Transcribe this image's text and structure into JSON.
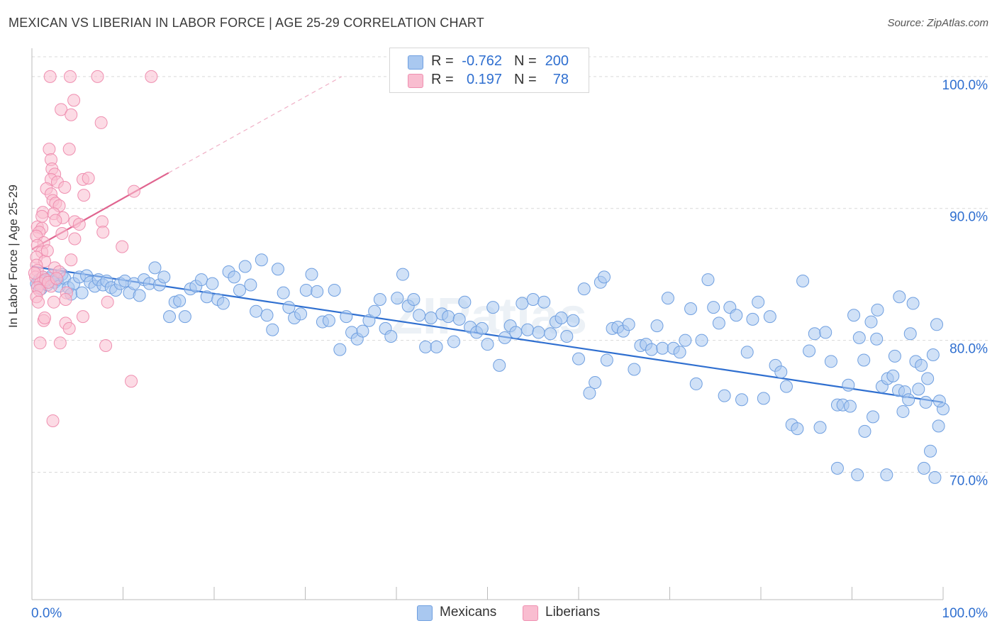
{
  "title": "MEXICAN VS LIBERIAN IN LABOR FORCE | AGE 25-29 CORRELATION CHART",
  "source": "Source: ZipAtlas.com",
  "watermark": "ZIPatlas",
  "legend": {
    "rows": [
      {
        "r_label": "R =",
        "r_value": "-0.762",
        "n_label": "N =",
        "n_value": "200",
        "color": "#a9c8f0",
        "border": "#6f9fe0"
      },
      {
        "r_label": "R =",
        "r_value": "0.197",
        "n_label": "N =",
        "n_value": "78",
        "color": "#f9bdd0",
        "border": "#ef8fb0"
      }
    ]
  },
  "bottom_legend": [
    {
      "label": "Mexicans",
      "color": "#a9c8f0",
      "border": "#6f9fe0"
    },
    {
      "label": "Liberians",
      "color": "#f9bdd0",
      "border": "#ef8fb0"
    }
  ],
  "chart_data": {
    "type": "scatter",
    "title": "MEXICAN VS LIBERIAN IN LABOR FORCE | AGE 25-29 CORRELATION CHART",
    "xlabel": "",
    "ylabel": "In Labor Force | Age 25-29",
    "xlim": [
      0,
      100
    ],
    "ylim": [
      60.5,
      101.5
    ],
    "x_tick_labels": [
      "0.0%",
      "100.0%"
    ],
    "y_ticks": [
      70,
      80,
      90,
      100
    ],
    "y_tick_labels": [
      "70.0%",
      "80.0%",
      "90.0%",
      "100.0%"
    ],
    "grid": true,
    "series": [
      {
        "name": "Mexicans",
        "color": "#a9c8f0",
        "stroke": "#6f9fe0",
        "trend_color": "#2f6fd0",
        "trend": {
          "x0": 0,
          "y0": 85.6,
          "x1": 100,
          "y1": 75.3
        },
        "points": [
          [
            0.5,
            84.3
          ],
          [
            0.8,
            84.6
          ],
          [
            1,
            83.9
          ],
          [
            1.2,
            84.8
          ],
          [
            1.5,
            84.5
          ],
          [
            1.7,
            84.2
          ],
          [
            2,
            84.7
          ],
          [
            2.2,
            84.9
          ],
          [
            2.5,
            84.4
          ],
          [
            2.8,
            84.6
          ],
          [
            3,
            84.1
          ],
          [
            3.3,
            85
          ],
          [
            3.6,
            84.7
          ],
          [
            4,
            84
          ],
          [
            4.3,
            83.5
          ],
          [
            4.6,
            84.3
          ],
          [
            5.2,
            84.8
          ],
          [
            5.5,
            83.6
          ],
          [
            6,
            84.9
          ],
          [
            6.4,
            84.4
          ],
          [
            6.9,
            84.1
          ],
          [
            7.3,
            84.6
          ],
          [
            7.8,
            84.2
          ],
          [
            8.2,
            84.5
          ],
          [
            8.7,
            84
          ],
          [
            9.2,
            83.8
          ],
          [
            9.7,
            84.3
          ],
          [
            10.2,
            84.5
          ],
          [
            10.7,
            83.6
          ],
          [
            11.2,
            84.3
          ],
          [
            11.8,
            83.4
          ],
          [
            12.3,
            84.6
          ],
          [
            12.9,
            84.3
          ],
          [
            13.5,
            85.5
          ],
          [
            14,
            84.2
          ],
          [
            14.5,
            84.8
          ],
          [
            15.1,
            81.8
          ],
          [
            15.7,
            82.9
          ],
          [
            16.2,
            83
          ],
          [
            16.8,
            81.8
          ],
          [
            17.4,
            83.9
          ],
          [
            18,
            84.1
          ],
          [
            18.6,
            84.6
          ],
          [
            19.2,
            83.3
          ],
          [
            19.8,
            84.3
          ],
          [
            20.4,
            83.1
          ],
          [
            21,
            82.8
          ],
          [
            21.6,
            85.2
          ],
          [
            22.2,
            84.8
          ],
          [
            22.8,
            83.8
          ],
          [
            23.4,
            85.6
          ],
          [
            24,
            84.2
          ],
          [
            24.6,
            82.2
          ],
          [
            25.2,
            86.1
          ],
          [
            25.8,
            81.9
          ],
          [
            26.4,
            80.8
          ],
          [
            27,
            85.4
          ],
          [
            27.6,
            83.6
          ],
          [
            28.2,
            82.5
          ],
          [
            28.8,
            81.7
          ],
          [
            29.5,
            82
          ],
          [
            30.1,
            83.8
          ],
          [
            30.7,
            85
          ],
          [
            31.3,
            83.7
          ],
          [
            31.9,
            81.4
          ],
          [
            32.6,
            81.5
          ],
          [
            33.2,
            83.8
          ],
          [
            33.8,
            79.3
          ],
          [
            34.5,
            81.8
          ],
          [
            35.1,
            80.6
          ],
          [
            35.7,
            80.1
          ],
          [
            36.3,
            80.7
          ],
          [
            37,
            81.5
          ],
          [
            37.6,
            82.2
          ],
          [
            38.2,
            83.1
          ],
          [
            38.8,
            80.9
          ],
          [
            39.4,
            80.3
          ],
          [
            40.1,
            83.2
          ],
          [
            40.7,
            85
          ],
          [
            41.3,
            82.6
          ],
          [
            41.9,
            83.1
          ],
          [
            42.5,
            81.9
          ],
          [
            43.2,
            79.5
          ],
          [
            43.8,
            81.7
          ],
          [
            44.4,
            79.5
          ],
          [
            45,
            82
          ],
          [
            45.7,
            81.8
          ],
          [
            46.3,
            79.9
          ],
          [
            46.9,
            81.6
          ],
          [
            47.5,
            82.9
          ],
          [
            48.1,
            81
          ],
          [
            48.8,
            80.6
          ],
          [
            49.4,
            80.9
          ],
          [
            50,
            79.7
          ],
          [
            50.6,
            82.5
          ],
          [
            51.3,
            78.1
          ],
          [
            51.9,
            80.2
          ],
          [
            52.5,
            81.1
          ],
          [
            53.1,
            80.6
          ],
          [
            53.8,
            82.8
          ],
          [
            54.4,
            80.8
          ],
          [
            55,
            83.1
          ],
          [
            55.6,
            80.6
          ],
          [
            56.2,
            82.9
          ],
          [
            56.9,
            80.5
          ],
          [
            57.5,
            81.4
          ],
          [
            58.1,
            81.7
          ],
          [
            58.7,
            80.3
          ],
          [
            59.4,
            81.5
          ],
          [
            60,
            78.6
          ],
          [
            60.6,
            83.9
          ],
          [
            61.2,
            76
          ],
          [
            61.8,
            76.8
          ],
          [
            62.4,
            84.4
          ],
          [
            62.8,
            84.8
          ],
          [
            63.1,
            78.5
          ],
          [
            63.7,
            80.9
          ],
          [
            64.3,
            81
          ],
          [
            64.9,
            80.7
          ],
          [
            65.5,
            81.2
          ],
          [
            66.1,
            77.8
          ],
          [
            66.8,
            79.6
          ],
          [
            67.4,
            79.7
          ],
          [
            68,
            79.3
          ],
          [
            68.6,
            81.1
          ],
          [
            69.2,
            79.4
          ],
          [
            69.8,
            83.2
          ],
          [
            70.4,
            79.4
          ],
          [
            71.1,
            79.1
          ],
          [
            71.7,
            80
          ],
          [
            72.3,
            82.4
          ],
          [
            72.9,
            76.7
          ],
          [
            73.5,
            80
          ],
          [
            74.2,
            84.6
          ],
          [
            74.8,
            82.5
          ],
          [
            75.4,
            81.3
          ],
          [
            76,
            75.8
          ],
          [
            76.6,
            82.5
          ],
          [
            77.3,
            81.9
          ],
          [
            77.9,
            75.5
          ],
          [
            78.5,
            79.1
          ],
          [
            79.1,
            81.6
          ],
          [
            79.7,
            82.9
          ],
          [
            80.3,
            75.6
          ],
          [
            81,
            81.8
          ],
          [
            81.6,
            78.1
          ],
          [
            82.2,
            77.6
          ],
          [
            82.8,
            76.5
          ],
          [
            83.4,
            73.6
          ],
          [
            84,
            73.3
          ],
          [
            84.6,
            84.5
          ],
          [
            85.3,
            79.2
          ],
          [
            85.9,
            80.5
          ],
          [
            86.5,
            73.4
          ],
          [
            87.1,
            80.6
          ],
          [
            87.7,
            78.4
          ],
          [
            88.4,
            75.1
          ],
          [
            89,
            75.1
          ],
          [
            89.6,
            76.6
          ],
          [
            90.2,
            81.9
          ],
          [
            90.8,
            80.2
          ],
          [
            91.4,
            73.1
          ],
          [
            92.1,
            81.4
          ],
          [
            92.7,
            80.1
          ],
          [
            93.3,
            76.5
          ],
          [
            93.9,
            77.1
          ],
          [
            94.5,
            77.3
          ],
          [
            95.1,
            76.2
          ],
          [
            95.8,
            76.1
          ],
          [
            96.4,
            80.5
          ],
          [
            97,
            78.4
          ],
          [
            97.6,
            78.1
          ],
          [
            98.3,
            77.1
          ],
          [
            98.9,
            78.9
          ],
          [
            99.5,
            73.5
          ],
          [
            100,
            74.8
          ],
          [
            93.8,
            69.8
          ],
          [
            90.6,
            69.8
          ],
          [
            88.4,
            70.3
          ],
          [
            89.8,
            75
          ],
          [
            91.3,
            78.5
          ],
          [
            92.8,
            82.3
          ],
          [
            95.2,
            83.3
          ],
          [
            96.7,
            82.8
          ],
          [
            97.9,
            70.3
          ],
          [
            98.6,
            71.6
          ],
          [
            99.1,
            69.6
          ],
          [
            99.6,
            75.4
          ],
          [
            94.7,
            78.8
          ],
          [
            92.3,
            74.2
          ],
          [
            95.6,
            74.6
          ],
          [
            96.2,
            75.5
          ],
          [
            97.3,
            76.3
          ],
          [
            98.1,
            75.3
          ],
          [
            99.3,
            81.2
          ]
        ]
      },
      {
        "name": "Liberians",
        "color": "#f9bdd0",
        "stroke": "#ef8fb0",
        "trend_color": "#e0648f",
        "trend": {
          "x0": 0,
          "y0": 86.9,
          "x1": 15,
          "y1": 92.7,
          "dash_to_x": 34,
          "dash_to_y": 100
        },
        "points": [
          [
            2,
            100
          ],
          [
            4.2,
            100
          ],
          [
            7.2,
            100
          ],
          [
            13.1,
            100
          ],
          [
            3.2,
            97.5
          ],
          [
            4.3,
            97.1
          ],
          [
            4.6,
            98.2
          ],
          [
            7.6,
            96.5
          ],
          [
            1.9,
            94.5
          ],
          [
            4.1,
            94.5
          ],
          [
            2.1,
            93.7
          ],
          [
            2.2,
            93
          ],
          [
            2.5,
            92.6
          ],
          [
            2.1,
            92.2
          ],
          [
            2.8,
            92
          ],
          [
            5.6,
            92.2
          ],
          [
            6.2,
            92.3
          ],
          [
            1.6,
            91.5
          ],
          [
            3.6,
            91.6
          ],
          [
            2.1,
            91.1
          ],
          [
            5.7,
            91
          ],
          [
            11.2,
            91.3
          ],
          [
            2.3,
            90.6
          ],
          [
            2.6,
            90.4
          ],
          [
            3,
            90.2
          ],
          [
            1.2,
            89.7
          ],
          [
            2.4,
            89.6
          ],
          [
            1.1,
            89.4
          ],
          [
            3.4,
            89.3
          ],
          [
            2.6,
            89.1
          ],
          [
            4.7,
            89
          ],
          [
            7.7,
            89
          ],
          [
            5.2,
            88.8
          ],
          [
            0.6,
            88.6
          ],
          [
            1.1,
            88.5
          ],
          [
            0.8,
            88.2
          ],
          [
            3.3,
            88.1
          ],
          [
            7.8,
            88.2
          ],
          [
            0.5,
            87.9
          ],
          [
            4.7,
            87.7
          ],
          [
            1.3,
            87.4
          ],
          [
            0.6,
            87.2
          ],
          [
            9.9,
            87.1
          ],
          [
            1.1,
            86.7
          ],
          [
            0.5,
            86.3
          ],
          [
            4.3,
            86.1
          ],
          [
            1.4,
            86
          ],
          [
            0.5,
            85.7
          ],
          [
            0.6,
            85.3
          ],
          [
            0.4,
            84.8
          ],
          [
            1.2,
            84.8
          ],
          [
            0.9,
            84.3
          ],
          [
            1.5,
            84.6
          ],
          [
            0.6,
            84
          ],
          [
            2.1,
            84.1
          ],
          [
            0.8,
            83.8
          ],
          [
            0.5,
            83.3
          ],
          [
            3.8,
            83.6
          ],
          [
            0.7,
            82.9
          ],
          [
            2.4,
            82.9
          ],
          [
            3.7,
            83.1
          ],
          [
            8.3,
            82.9
          ],
          [
            1.3,
            81.5
          ],
          [
            1.4,
            81.7
          ],
          [
            3.7,
            81.3
          ],
          [
            5.6,
            81.8
          ],
          [
            4.1,
            80.9
          ],
          [
            0.9,
            79.8
          ],
          [
            3.1,
            79.8
          ],
          [
            8.1,
            79.6
          ],
          [
            10.9,
            76.9
          ],
          [
            2.3,
            73.9
          ],
          [
            2.5,
            85.5
          ],
          [
            1.7,
            86.8
          ],
          [
            3,
            85.2
          ],
          [
            0.3,
            85.1
          ],
          [
            1.8,
            84.4
          ],
          [
            2.7,
            84.7
          ]
        ]
      }
    ]
  }
}
